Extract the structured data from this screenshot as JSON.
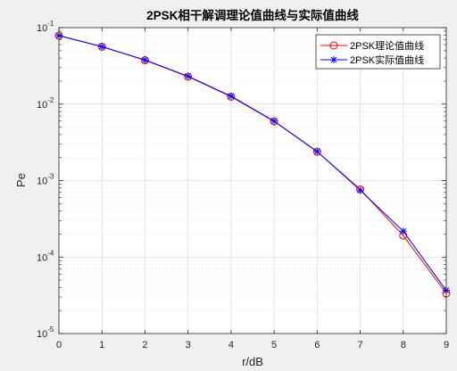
{
  "chart_data": {
    "type": "line",
    "title": "2PSK相干解调理论值曲线与实际值曲线",
    "xlabel": "r/dB",
    "ylabel": "Pe",
    "xlim": [
      0,
      9
    ],
    "ylim": [
      1e-05,
      0.1
    ],
    "yscale": "log",
    "grid": true,
    "minor_grid": true,
    "legend_position": "top-right",
    "x": [
      0,
      1,
      2,
      3,
      4,
      5,
      6,
      7,
      8,
      9
    ],
    "x_ticks": [
      "0",
      "1",
      "2",
      "3",
      "4",
      "5",
      "6",
      "7",
      "8",
      "9"
    ],
    "y_ticks": [
      {
        "base": "10",
        "exp": "-5",
        "value": 1e-05
      },
      {
        "base": "10",
        "exp": "-4",
        "value": 0.0001
      },
      {
        "base": "10",
        "exp": "-3",
        "value": 0.001
      },
      {
        "base": "10",
        "exp": "-2",
        "value": 0.01
      },
      {
        "base": "10",
        "exp": "-1",
        "value": 0.1
      }
    ],
    "series": [
      {
        "name": "2PSK理论值曲线",
        "color": "#ff0000",
        "marker": "circle",
        "values": [
          0.0786,
          0.0563,
          0.0375,
          0.0229,
          0.0125,
          0.00595,
          0.00239,
          0.00077,
          0.000191,
          3.36e-05
        ]
      },
      {
        "name": "2PSK实际值曲线",
        "color": "#0000ff",
        "marker": "asterisk",
        "values": [
          0.0788,
          0.0565,
          0.0378,
          0.0232,
          0.0127,
          0.006,
          0.0024,
          0.00075,
          0.000218,
          3.65e-05
        ]
      }
    ]
  }
}
